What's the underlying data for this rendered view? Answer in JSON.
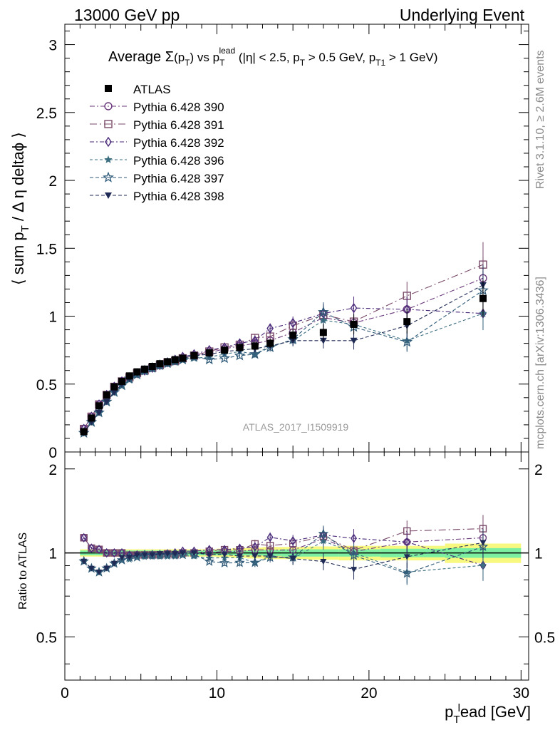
{
  "header": {
    "left": "13000 GeV pp",
    "right": "Underlying Event"
  },
  "title": {
    "prefix": "Average ",
    "sigma": "Σ",
    "pt_arg": "(p",
    "pt_sub": "T",
    "pt_close": ")",
    "vs": " vs p",
    "lead_sup": "lead",
    "lead_sub": "T",
    "cuts": " (|η| < 2.5, p",
    "cut_sub1": "T",
    "cuts2": " > 0.5 GeV, p",
    "cut_sub2": "T1",
    "cuts3": " > 1 GeV)"
  },
  "side_labels": {
    "rivet": "Rivet 3.1.10, ≥ 2.6M events",
    "mcplots": "mcplots.cern.ch [arXiv:1306.3436]"
  },
  "watermark": "ATLAS_2017_I1509919",
  "axes": {
    "ylabel_main": "⟨ sum p",
    "ylabel_main_sub": "T",
    "ylabel_main_rest": " / Δ η deltaϕ ⟩",
    "ylabel_ratio": "Ratio to ATLAS",
    "xlabel": "p",
    "xlabel_sub": "T",
    "xlabel_sup": "l",
    "xlabel_rest": "ead [GeV]"
  },
  "colors": {
    "atlas": "#000000",
    "s390": "#6b3a7d",
    "s391": "#7a4a6a",
    "s392": "#4a2a7a",
    "s396": "#3c6e82",
    "s397": "#2f5a78",
    "s398": "#1f2a55",
    "band_inner": "#7cf0a0",
    "band_outer": "#f8f880"
  },
  "chart_data": {
    "type": "scatter",
    "xlim": [
      0,
      30.5
    ],
    "ylim_main": [
      0,
      3.15
    ],
    "ylim_ratio": [
      0.35,
      2.3
    ],
    "x_ticks": [
      "0",
      "10",
      "20",
      "30"
    ],
    "y_ticks_main": [
      "0",
      "0.5",
      "1",
      "1.5",
      "2",
      "2.5",
      "3"
    ],
    "y_ticks_ratio": [
      "0.5",
      "1",
      "2"
    ],
    "x": [
      1.25,
      1.75,
      2.25,
      2.75,
      3.25,
      3.75,
      4.25,
      4.75,
      5.25,
      5.75,
      6.25,
      6.75,
      7.25,
      7.75,
      8.5,
      9.5,
      10.5,
      11.5,
      12.5,
      13.5,
      15.0,
      17.0,
      19.0,
      22.5,
      27.5
    ],
    "series": [
      {
        "name": "ATLAS",
        "marker": "square-filled",
        "dash": "",
        "values": [
          0.15,
          0.25,
          0.34,
          0.42,
          0.48,
          0.52,
          0.56,
          0.59,
          0.61,
          0.63,
          0.65,
          0.665,
          0.68,
          0.69,
          0.71,
          0.73,
          0.75,
          0.77,
          0.78,
          0.8,
          0.86,
          0.88,
          0.94,
          0.96,
          1.13
        ]
      },
      {
        "name": "Pythia 6.428 390",
        "marker": "circle-open",
        "dash": "7,3,2,3",
        "values": [
          0.17,
          0.26,
          0.35,
          0.42,
          0.48,
          0.52,
          0.55,
          0.58,
          0.6,
          0.62,
          0.64,
          0.66,
          0.67,
          0.69,
          0.71,
          0.73,
          0.76,
          0.78,
          0.8,
          0.82,
          0.88,
          0.99,
          0.95,
          1.05,
          1.28
        ]
      },
      {
        "name": "Pythia 6.428 391",
        "marker": "square-open",
        "dash": "10,4,2,4",
        "values": [
          0.17,
          0.26,
          0.35,
          0.42,
          0.48,
          0.52,
          0.55,
          0.58,
          0.6,
          0.62,
          0.64,
          0.66,
          0.67,
          0.69,
          0.71,
          0.74,
          0.77,
          0.79,
          0.84,
          0.85,
          0.93,
          1.01,
          0.96,
          1.15,
          1.38
        ]
      },
      {
        "name": "Pythia 6.428 392",
        "marker": "diamond-open",
        "dash": "6,3,2,3",
        "values": [
          0.17,
          0.26,
          0.35,
          0.42,
          0.48,
          0.52,
          0.55,
          0.58,
          0.6,
          0.62,
          0.64,
          0.66,
          0.68,
          0.7,
          0.72,
          0.75,
          0.77,
          0.8,
          0.82,
          0.91,
          0.95,
          1.02,
          1.06,
          1.05,
          1.02
        ]
      },
      {
        "name": "Pythia 6.428 396",
        "marker": "star-filled",
        "dash": "4,3",
        "values": [
          0.14,
          0.22,
          0.29,
          0.37,
          0.44,
          0.49,
          0.53,
          0.57,
          0.59,
          0.61,
          0.63,
          0.645,
          0.66,
          0.675,
          0.69,
          0.7,
          0.72,
          0.74,
          0.72,
          0.78,
          0.82,
          0.97,
          0.94,
          0.82,
          1.02
        ]
      },
      {
        "name": "Pythia 6.428 397",
        "marker": "star-open",
        "dash": "5,3",
        "values": [
          0.14,
          0.22,
          0.29,
          0.37,
          0.44,
          0.49,
          0.54,
          0.57,
          0.6,
          0.62,
          0.64,
          0.655,
          0.67,
          0.68,
          0.7,
          0.68,
          0.69,
          0.71,
          0.72,
          0.77,
          0.83,
          1.03,
          0.92,
          0.81,
          1.19
        ]
      },
      {
        "name": "Pythia 6.428 398",
        "marker": "triangle-down-filled",
        "dash": "5,3",
        "values": [
          0.14,
          0.22,
          0.29,
          0.37,
          0.44,
          0.5,
          0.54,
          0.58,
          0.6,
          0.62,
          0.645,
          0.66,
          0.675,
          0.69,
          0.71,
          0.72,
          0.74,
          0.75,
          0.76,
          0.78,
          0.82,
          0.82,
          0.82,
          0.93,
          1.23
        ]
      }
    ],
    "errors_rel": [
      0.01,
      0.01,
      0.01,
      0.01,
      0.01,
      0.01,
      0.01,
      0.01,
      0.01,
      0.01,
      0.01,
      0.01,
      0.01,
      0.015,
      0.02,
      0.02,
      0.025,
      0.03,
      0.035,
      0.04,
      0.05,
      0.07,
      0.08,
      0.09,
      0.12
    ],
    "band_inner_rel": [
      0.02,
      0.02,
      0.02,
      0.02,
      0.02,
      0.02,
      0.02,
      0.02,
      0.02,
      0.02,
      0.02,
      0.02,
      0.02,
      0.02,
      0.02,
      0.02,
      0.02,
      0.02,
      0.02,
      0.025,
      0.03,
      0.03,
      0.03,
      0.035,
      0.04
    ],
    "band_outer_rel": [
      0.03,
      0.03,
      0.03,
      0.03,
      0.03,
      0.03,
      0.03,
      0.03,
      0.03,
      0.03,
      0.03,
      0.03,
      0.03,
      0.03,
      0.03,
      0.03,
      0.035,
      0.04,
      0.045,
      0.05,
      0.05,
      0.055,
      0.06,
      0.06,
      0.08
    ],
    "legend_position": "top-left"
  }
}
